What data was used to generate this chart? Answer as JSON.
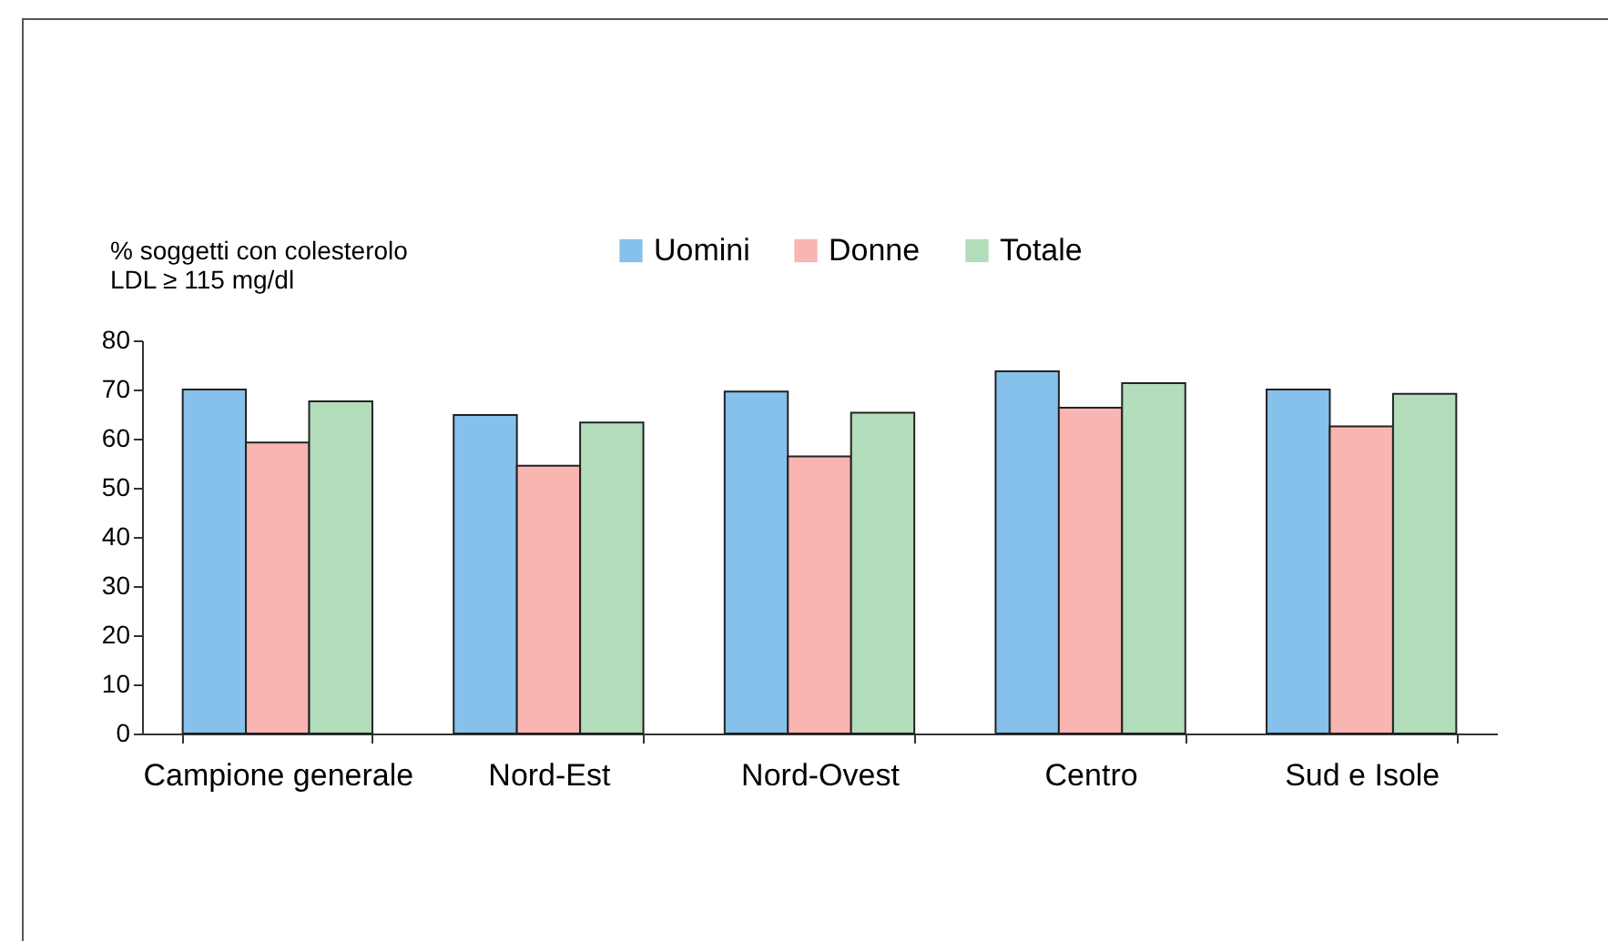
{
  "chart_data": {
    "type": "bar",
    "ylabel": "% soggetti con colesterolo\nLDL ≥ 115 mg/dl",
    "categories": [
      "Campione generale",
      "Nord-Est",
      "Nord-Ovest",
      "Centro",
      "Sud e Isole"
    ],
    "series": [
      {
        "name": "Uomini",
        "color": "#85c1ea",
        "values": [
          70.0,
          64.8,
          69.6,
          73.7,
          70.0
        ]
      },
      {
        "name": "Donne",
        "color": "#f8b5b2",
        "values": [
          59.2,
          54.5,
          56.4,
          66.3,
          62.5
        ]
      },
      {
        "name": "Totale",
        "color": "#b3dcbb",
        "values": [
          67.6,
          63.3,
          65.3,
          71.3,
          69.1
        ]
      }
    ],
    "ylim": [
      0,
      80
    ],
    "yticks": [
      0,
      10,
      20,
      30,
      40,
      50,
      60,
      70,
      80
    ],
    "grid": false,
    "legend": "top"
  }
}
